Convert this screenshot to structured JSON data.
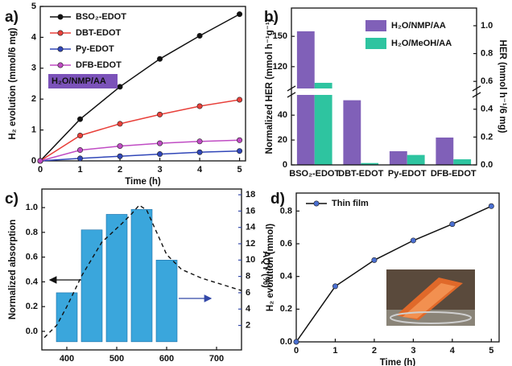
{
  "chart_data": [
    {
      "type": "line",
      "panel_label": "a)",
      "xlabel": "Time (h)",
      "ylabel": "H₂ evolution (mmol/6 mg)",
      "x": [
        0,
        1,
        2,
        3,
        4,
        5
      ],
      "xlim": [
        0,
        5.15
      ],
      "xticks": [
        0,
        1,
        2,
        3,
        4,
        5
      ],
      "ylim": [
        0,
        5
      ],
      "yticks": [
        0,
        1,
        2,
        3,
        4,
        5
      ],
      "legend": "upper left",
      "annotation": "H₂O/NMP/AA",
      "annotation_color": "#7b52b9",
      "series": [
        {
          "name": "BSO₂-EDOT",
          "color": "#111111",
          "values": [
            0,
            1.35,
            2.4,
            3.3,
            4.05,
            4.75
          ]
        },
        {
          "name": "DBT-EDOT",
          "color": "#e8403a",
          "values": [
            0,
            0.82,
            1.2,
            1.5,
            1.77,
            1.98
          ]
        },
        {
          "name": "Py-EDOT",
          "color": "#3046b8",
          "values": [
            0,
            0.08,
            0.15,
            0.22,
            0.28,
            0.32
          ]
        },
        {
          "name": "DFB-EDOT",
          "color": "#c04cc4",
          "values": [
            0,
            0.35,
            0.48,
            0.57,
            0.63,
            0.67
          ]
        }
      ]
    },
    {
      "type": "bar",
      "panel_label": "b)",
      "ylabel": "Normalized HER (mmol h⁻¹g⁻¹)",
      "y2label": "HER (mmol h⁻¹/6 mg)",
      "categories": [
        "BSO₂-EDOT",
        "DBT-EDOT",
        "Py-EDOT",
        "DFB-EDOT"
      ],
      "ylim": [
        0,
        178
      ],
      "ybreak": [
        55,
        100
      ],
      "yticks": [
        0,
        20,
        40,
        120,
        150
      ],
      "y2lim": [
        0,
        1.127
      ],
      "y2ticks": [
        {
          "value": 0,
          "label": "0.0"
        },
        0.2,
        0.4,
        0.6,
        0.8,
        {
          "value": 1,
          "label": "1.0"
        }
      ],
      "legend": "upper right",
      "series": [
        {
          "name": "H₂O/NMP/AA",
          "color": "#8060b8",
          "values": [
            155,
            52,
            11,
            22
          ]
        },
        {
          "name": "H₂O/MeOH/AA",
          "color": "#2ec4a0",
          "values": [
            104,
            1.5,
            8,
            4.5
          ]
        }
      ]
    },
    {
      "type": "combo",
      "panel_label": "c)",
      "xlabel": "Wavelength (nm)",
      "ylabel": "Normalized absorption",
      "y2label": "AQY (%)",
      "xlim": [
        350,
        750
      ],
      "xticks": [
        400,
        500,
        600,
        700
      ],
      "ylim": [
        -0.15,
        1.15
      ],
      "yticks": [
        {
          "value": 0,
          "label": "0.0"
        },
        0.2,
        0.4,
        0.6,
        0.8,
        {
          "value": 1,
          "label": "1.0"
        }
      ],
      "y2lim": [
        -1,
        18.7
      ],
      "y2ticks": [
        2,
        4,
        6,
        8,
        10,
        12,
        14,
        16,
        18
      ],
      "y2color": "#3348a8",
      "line": {
        "color": "#111111",
        "x": [
          355,
          380,
          400,
          430,
          470,
          510,
          530,
          545,
          560,
          580,
          600,
          630,
          670,
          710,
          750
        ],
        "values": [
          -0.05,
          0.05,
          0.2,
          0.45,
          0.72,
          0.87,
          0.95,
          1.02,
          0.98,
          0.8,
          0.62,
          0.5,
          0.43,
          0.38,
          0.33
        ]
      },
      "bars": {
        "color": "#3aa6dc",
        "axis": "y2",
        "x": [
          400,
          450,
          500,
          550,
          600
        ],
        "values": [
          6.0,
          13.7,
          15.6,
          16.2,
          10.0
        ]
      }
    },
    {
      "type": "line",
      "panel_label": "d)",
      "xlabel": "Time (h)",
      "ylabel": "H₂ evolution (mmol)",
      "x": [
        0,
        1,
        2,
        3,
        4,
        5
      ],
      "xlim": [
        0,
        5.2
      ],
      "xticks": [
        0,
        1,
        2,
        3,
        4,
        5
      ],
      "ylim": [
        0,
        0.91
      ],
      "yticks": [
        {
          "value": 0,
          "label": "0.0"
        },
        0.2,
        0.4,
        0.6,
        0.8
      ],
      "legend": "upper left",
      "line_color": "#111111",
      "series": [
        {
          "name": "Thin film",
          "color": "#4a6fd1",
          "values": [
            0,
            0.34,
            0.5,
            0.62,
            0.72,
            0.83
          ]
        }
      ]
    }
  ]
}
